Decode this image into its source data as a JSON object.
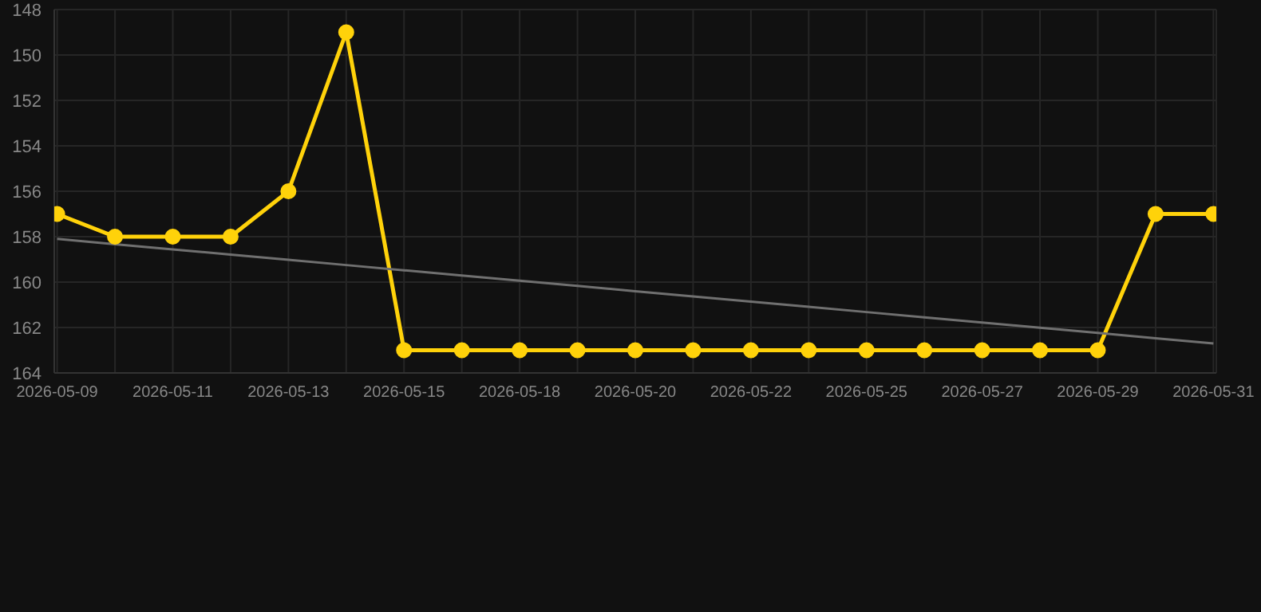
{
  "chart_data": {
    "type": "line",
    "categories": [
      "2026-05-09",
      null,
      "2026-05-11",
      null,
      "2026-05-13",
      null,
      "2026-05-15",
      null,
      "2026-05-18",
      null,
      "2026-05-20",
      null,
      "2026-05-22",
      null,
      "2026-05-25",
      null,
      "2026-05-27",
      null,
      "2026-05-29",
      null,
      "2026-05-31"
    ],
    "series": [
      {
        "color": "#ffd20a",
        "values": [
          157,
          158,
          158,
          158,
          156,
          149,
          163,
          163,
          163,
          163,
          163,
          163,
          163,
          163,
          163,
          163,
          163,
          163,
          163,
          157,
          157
        ],
        "marker": "circle"
      },
      {
        "type": "line",
        "color": "#707070",
        "values": [
          158.1,
          158.33,
          158.56,
          158.79,
          159.02,
          159.25,
          159.48,
          159.71,
          159.94,
          160.17,
          160.4,
          160.63,
          160.86,
          161.09,
          161.32,
          161.55,
          161.78,
          162.01,
          162.24,
          162.47,
          162.7
        ],
        "marker": "none"
      }
    ],
    "ylim": [
      164,
      148
    ],
    "yticks": [
      148,
      150,
      152,
      154,
      156,
      158,
      160,
      162,
      164
    ],
    "grid": true
  }
}
